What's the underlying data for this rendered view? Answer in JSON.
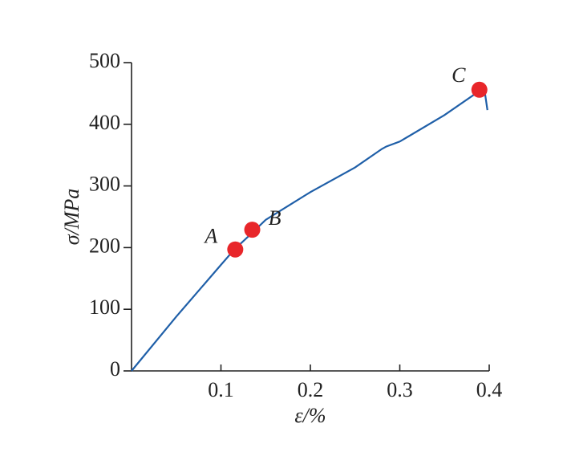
{
  "chart_data": {
    "type": "line",
    "x_label": "ε/%",
    "y_label": "σ/MPa",
    "xlim": [
      0,
      0.4
    ],
    "xticks": [
      0.1,
      0.2,
      0.3,
      0.4
    ],
    "ylim": [
      0,
      500
    ],
    "yticks": [
      0,
      100,
      200,
      300,
      400,
      500
    ],
    "series": [
      {
        "color": "#1f5fa8",
        "x": [
          0,
          0.05,
          0.1,
          0.115,
          0.135,
          0.15,
          0.2,
          0.25,
          0.28,
          0.285,
          0.3,
          0.35,
          0.39,
          0.395,
          0.398
        ],
        "values": [
          0,
          88,
          172,
          197,
          224,
          245,
          290,
          330,
          360,
          364,
          372,
          415,
          455,
          453,
          423
        ]
      }
    ],
    "points": {
      "color": "#e8262a",
      "labels": [
        "A",
        "B",
        "C"
      ],
      "x": [
        0.116,
        0.135,
        0.389
      ],
      "values": [
        197,
        229,
        456
      ]
    }
  }
}
